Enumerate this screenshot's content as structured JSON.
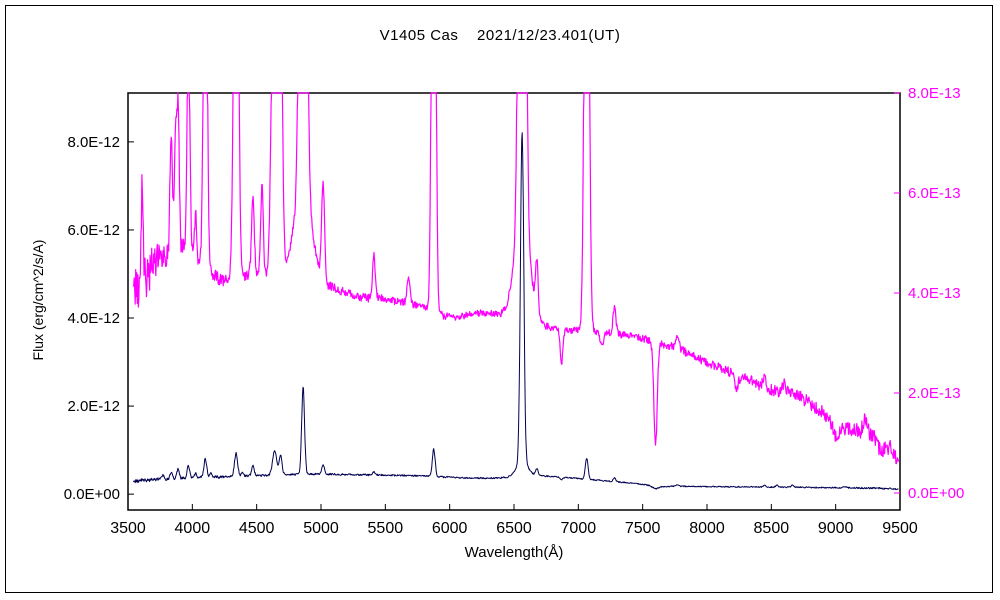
{
  "page": {
    "background": "#ffffff",
    "border_color": "#000000"
  },
  "chart_data": {
    "type": "line",
    "title": "V1405 Cas    2021/12/23.401(UT)",
    "xlabel": "Wavelength(Å)",
    "ylabel": "Flux (erg/cm^2/s/A)",
    "x_range": [
      3500,
      9500
    ],
    "x_ticks": [
      3500,
      4000,
      4500,
      5000,
      5500,
      6000,
      6500,
      7000,
      7500,
      8000,
      8500,
      9000,
      9500
    ],
    "grid": false,
    "legend": "none",
    "left_axis": {
      "color": "#000000",
      "unit_scale": "1e-12",
      "tick_values": [
        0,
        2,
        4,
        6,
        8
      ],
      "tick_labels": [
        "0.0E+00",
        "2.0E-12",
        "4.0E-12",
        "6.0E-12",
        "8.0E-12"
      ],
      "range": [
        -0.36,
        9.11
      ]
    },
    "right_axis": {
      "color": "#ff00ff",
      "unit_scale": "1e-13",
      "tick_values": [
        0,
        2,
        4,
        6,
        8
      ],
      "tick_labels": [
        "0.0E+00",
        "2.0E-13",
        "4.0E-13",
        "6.0E-13",
        "8.0E-13"
      ],
      "range": [
        -0.34,
        8.0
      ]
    },
    "series": [
      {
        "name": "spectrum-dark",
        "color": "#000050",
        "axis": "left",
        "width": 1,
        "x_start": 3540,
        "x_end": 9490,
        "continuum": [
          [
            3540,
            0.3
          ],
          [
            3700,
            0.33
          ],
          [
            3900,
            0.36
          ],
          [
            4100,
            0.38
          ],
          [
            4300,
            0.4
          ],
          [
            4500,
            0.42
          ],
          [
            4700,
            0.44
          ],
          [
            4900,
            0.46
          ],
          [
            5100,
            0.45
          ],
          [
            5300,
            0.44
          ],
          [
            5500,
            0.43
          ],
          [
            5700,
            0.42
          ],
          [
            5900,
            0.4
          ],
          [
            6100,
            0.37
          ],
          [
            6300,
            0.36
          ],
          [
            6500,
            0.38
          ],
          [
            6700,
            0.42
          ],
          [
            6900,
            0.38
          ],
          [
            7100,
            0.33
          ],
          [
            7300,
            0.28
          ],
          [
            7450,
            0.24
          ],
          [
            7550,
            0.2
          ],
          [
            7600,
            0.12
          ],
          [
            7650,
            0.17
          ],
          [
            7750,
            0.18
          ],
          [
            8000,
            0.17
          ],
          [
            8300,
            0.165
          ],
          [
            8600,
            0.16
          ],
          [
            8900,
            0.15
          ],
          [
            9200,
            0.14
          ],
          [
            9400,
            0.13
          ],
          [
            9490,
            0.11
          ]
        ],
        "lines": [
          [
            3770,
            0.1,
            9
          ],
          [
            3835,
            0.15,
            9
          ],
          [
            3889,
            0.22,
            9
          ],
          [
            3970,
            0.28,
            10
          ],
          [
            4026,
            0.1,
            9
          ],
          [
            4101,
            0.42,
            11
          ],
          [
            4144,
            0.08,
            9
          ],
          [
            4340,
            0.52,
            12
          ],
          [
            4388,
            0.08,
            9
          ],
          [
            4471,
            0.22,
            10
          ],
          [
            4640,
            0.55,
            16
          ],
          [
            4686,
            0.45,
            11
          ],
          [
            4861,
            2.0,
            11
          ],
          [
            5016,
            0.2,
            11
          ],
          [
            5411,
            0.08,
            9
          ],
          [
            5876,
            0.62,
            11
          ],
          [
            6563,
            7.5,
            13
          ],
          [
            6563,
            0.35,
            45
          ],
          [
            6678,
            0.15,
            10
          ],
          [
            7065,
            0.48,
            11
          ],
          [
            7281,
            0.08,
            10
          ],
          [
            7772,
            0.04,
            10
          ],
          [
            8446,
            0.04,
            10
          ],
          [
            8545,
            0.04,
            10
          ],
          [
            8665,
            0.04,
            10
          ],
          [
            9069,
            0.03,
            10
          ],
          [
            6870,
            -0.06,
            10
          ]
        ],
        "noise": [
          [
            3540,
            0.05
          ],
          [
            3700,
            0.035
          ],
          [
            4000,
            0.03
          ],
          [
            4500,
            0.025
          ],
          [
            5000,
            0.02
          ],
          [
            6000,
            0.018
          ],
          [
            7000,
            0.015
          ],
          [
            8000,
            0.012
          ],
          [
            9000,
            0.015
          ],
          [
            9490,
            0.02
          ]
        ]
      },
      {
        "name": "spectrum-magenta",
        "color": "#ff00ff",
        "axis": "right",
        "width": 1.2,
        "x_start": 3540,
        "x_end": 9490,
        "continuum": [
          [
            3540,
            4.3
          ],
          [
            3600,
            4.1
          ],
          [
            3650,
            4.4
          ],
          [
            3700,
            4.6
          ],
          [
            3800,
            4.8
          ],
          [
            3900,
            4.9
          ],
          [
            3950,
            4.9
          ],
          [
            4050,
            4.6
          ],
          [
            4150,
            4.35
          ],
          [
            4250,
            4.25
          ],
          [
            4350,
            4.3
          ],
          [
            4450,
            4.35
          ],
          [
            4550,
            4.35
          ],
          [
            4650,
            4.4
          ],
          [
            4750,
            4.45
          ],
          [
            4950,
            4.3
          ],
          [
            5050,
            4.15
          ],
          [
            5150,
            4.05
          ],
          [
            5250,
            3.95
          ],
          [
            5350,
            3.9
          ],
          [
            5450,
            3.9
          ],
          [
            5550,
            3.85
          ],
          [
            5650,
            3.8
          ],
          [
            5750,
            3.75
          ],
          [
            5850,
            3.65
          ],
          [
            5950,
            3.55
          ],
          [
            6050,
            3.5
          ],
          [
            6150,
            3.58
          ],
          [
            6250,
            3.6
          ],
          [
            6350,
            3.58
          ],
          [
            6450,
            3.5
          ],
          [
            6600,
            3.45
          ],
          [
            6700,
            3.35
          ],
          [
            6800,
            3.3
          ],
          [
            6950,
            3.25
          ],
          [
            7100,
            3.25
          ],
          [
            7250,
            3.2
          ],
          [
            7400,
            3.15
          ],
          [
            7550,
            3.05
          ],
          [
            7700,
            2.95
          ],
          [
            7850,
            2.8
          ],
          [
            8000,
            2.6
          ],
          [
            8150,
            2.45
          ],
          [
            8300,
            2.3
          ],
          [
            8450,
            2.1
          ],
          [
            8600,
            2.0
          ],
          [
            8700,
            1.95
          ],
          [
            8800,
            1.8
          ],
          [
            8950,
            1.5
          ],
          [
            9050,
            1.3
          ],
          [
            9150,
            1.25
          ],
          [
            9250,
            1.2
          ],
          [
            9320,
            1.05
          ],
          [
            9400,
            0.95
          ],
          [
            9450,
            0.8
          ],
          [
            9490,
            0.6
          ]
        ],
        "lines": [
          [
            3610,
            1.8,
            8
          ],
          [
            3835,
            2.4,
            9
          ],
          [
            3868,
            2.2,
            9
          ],
          [
            3889,
            2.9,
            9
          ],
          [
            3970,
            4.3,
            11
          ],
          [
            4026,
            0.9,
            9
          ],
          [
            4101,
            10,
            13
          ],
          [
            4340,
            12,
            16
          ],
          [
            4471,
            1.5,
            11
          ],
          [
            4541,
            1.8,
            10
          ],
          [
            4640,
            9,
            20
          ],
          [
            4686,
            7,
            13
          ],
          [
            4861,
            22,
            20
          ],
          [
            4861,
            2,
            60
          ],
          [
            5016,
            1.9,
            12
          ],
          [
            5411,
            0.9,
            10
          ],
          [
            5680,
            0.5,
            12
          ],
          [
            5876,
            15,
            14
          ],
          [
            6563,
            26,
            20
          ],
          [
            6563,
            2,
            60
          ],
          [
            6678,
            1.0,
            10
          ],
          [
            7065,
            15,
            16
          ],
          [
            7281,
            0.5,
            12
          ],
          [
            7772,
            0.3,
            12
          ],
          [
            8446,
            0.25,
            12
          ],
          [
            8600,
            0.2,
            15
          ],
          [
            9229,
            0.3,
            15
          ],
          [
            6870,
            -0.7,
            10
          ],
          [
            7180,
            -0.25,
            15
          ],
          [
            7600,
            -2.05,
            13
          ],
          [
            8230,
            -0.25,
            15
          ],
          [
            9000,
            -0.3,
            20
          ],
          [
            9350,
            -0.2,
            15
          ]
        ],
        "noise": [
          [
            3540,
            0.55
          ],
          [
            3650,
            0.45
          ],
          [
            3750,
            0.3
          ],
          [
            3850,
            0.22
          ],
          [
            4000,
            0.18
          ],
          [
            4200,
            0.13
          ],
          [
            4500,
            0.1
          ],
          [
            5000,
            0.09
          ],
          [
            5500,
            0.08
          ],
          [
            6000,
            0.07
          ],
          [
            7000,
            0.07
          ],
          [
            7500,
            0.08
          ],
          [
            8000,
            0.09
          ],
          [
            8500,
            0.11
          ],
          [
            9000,
            0.14
          ],
          [
            9300,
            0.16
          ],
          [
            9490,
            0.18
          ]
        ]
      }
    ]
  }
}
